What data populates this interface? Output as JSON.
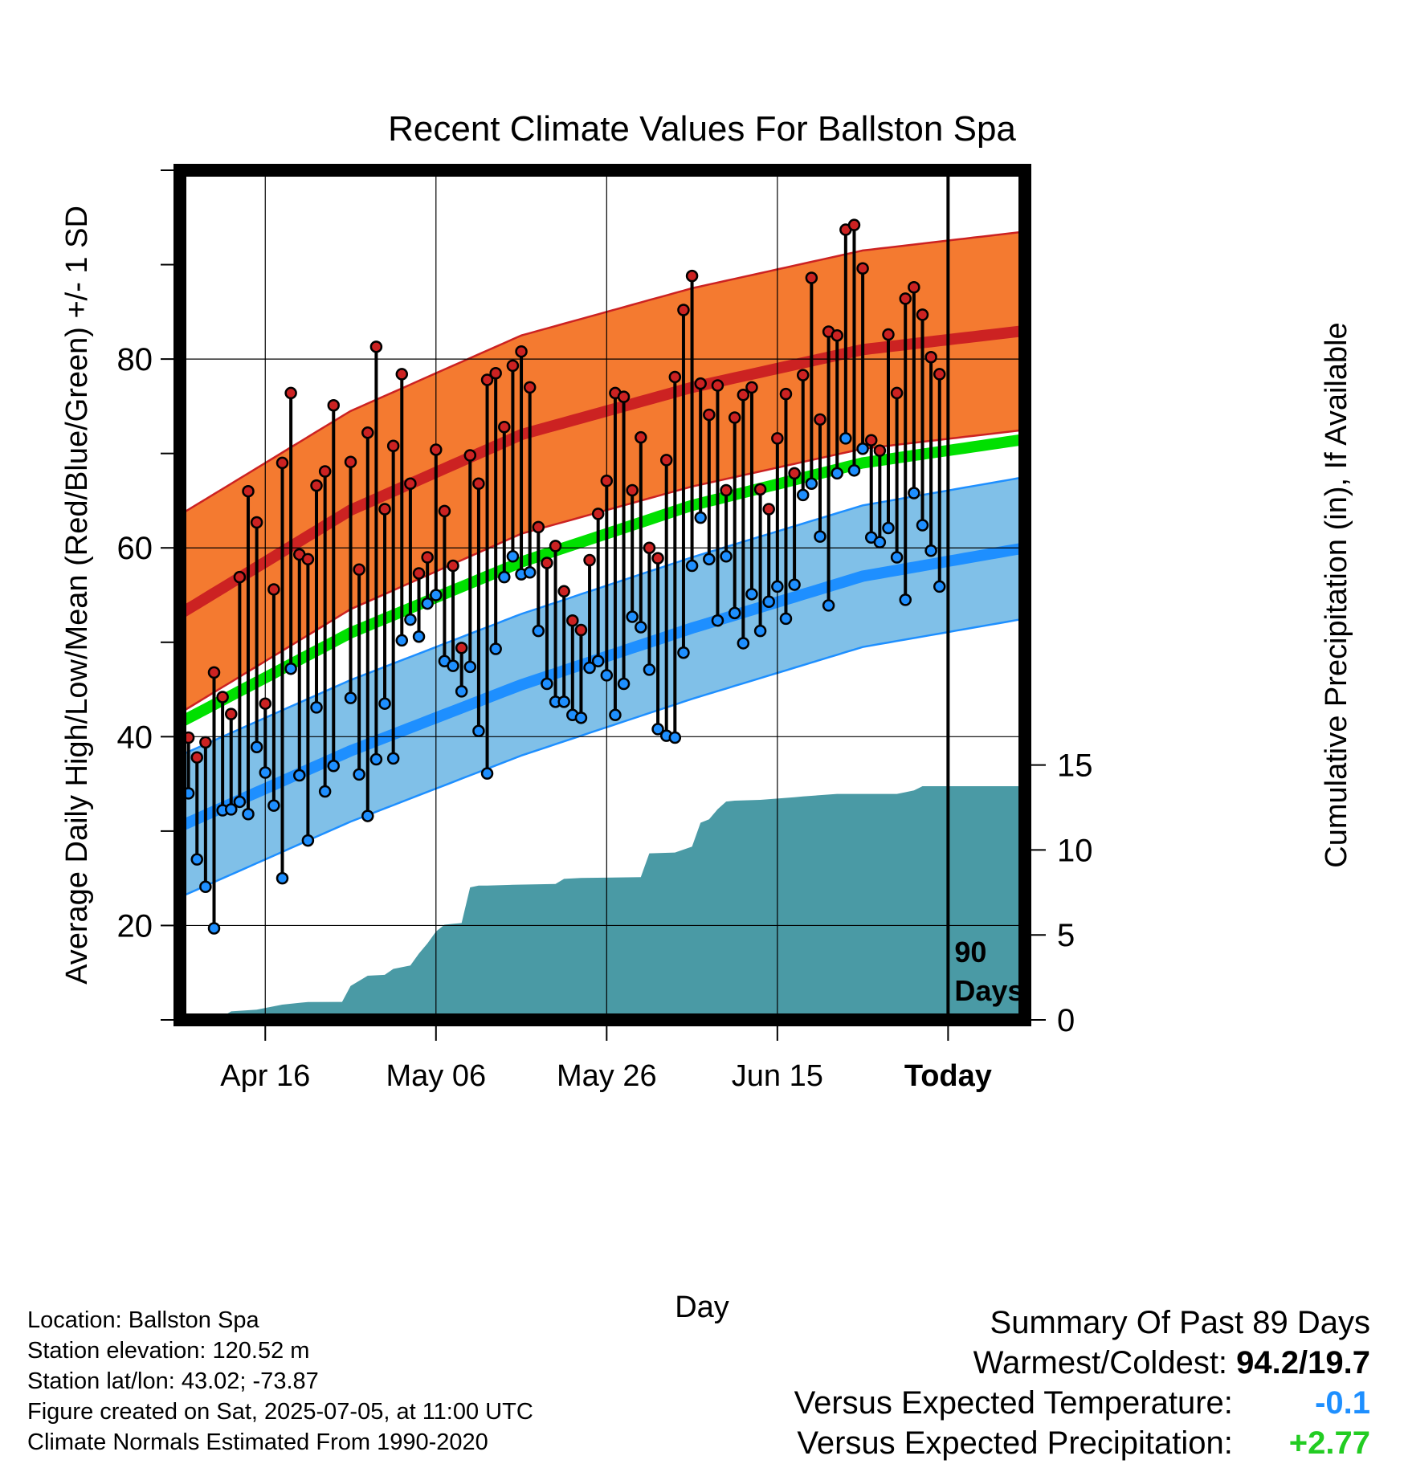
{
  "chart_data": {
    "type": "line",
    "title": "Recent Climate Values For Ballston Spa",
    "xlabel": "Day",
    "ylabel": "Average Daily High/Low/Mean (Red/Blue/Green) +/- 1 SD",
    "y2label": "Cumulative Precipitation (in), If Available",
    "x_tick_labels": [
      "Apr 16",
      "May 06",
      "May 26",
      "Jun 15",
      "Today"
    ],
    "x_ticks": [
      "2025-04-16",
      "2025-05-06",
      "2025-05-26",
      "2025-06-15",
      "2025-07-05"
    ],
    "x_range": [
      "2025-04-06",
      "2025-07-14"
    ],
    "ylim": [
      10,
      100
    ],
    "y_ticks": [
      20,
      40,
      60,
      80
    ],
    "y2lim": [
      0,
      15
    ],
    "y2_ticks": [
      0,
      5,
      10,
      15
    ],
    "today": "2025-07-05",
    "today_label": [
      "90",
      "Days"
    ],
    "colors": {
      "high": "#cc2222",
      "high_band": "#f47a30",
      "low": "#1e8fff",
      "low_band": "#80c0e8",
      "mean": "#00e000",
      "precip": "#4a9aa5",
      "high_dot": "#cc2222",
      "low_dot": "#1e8fff"
    },
    "normal_high": {
      "x": [
        "2025-04-06",
        "2025-04-26",
        "2025-05-16",
        "2025-06-05",
        "2025-06-25",
        "2025-07-14"
      ],
      "y": [
        53,
        64,
        72,
        77,
        81,
        83
      ]
    },
    "normal_high_sd": 10.5,
    "normal_low": {
      "x": [
        "2025-04-06",
        "2025-04-26",
        "2025-05-16",
        "2025-06-05",
        "2025-06-25",
        "2025-07-14"
      ],
      "y": [
        30.5,
        38.5,
        45.5,
        51.5,
        57,
        60
      ]
    },
    "normal_low_sd": 7.5,
    "normal_mean": {
      "x": [
        "2025-04-06",
        "2025-04-26",
        "2025-05-16",
        "2025-06-05",
        "2025-06-25",
        "2025-07-14"
      ],
      "y": [
        41.5,
        51,
        58.5,
        64.5,
        69,
        71.5
      ]
    },
    "daily": {
      "start": "2025-04-06",
      "high": [
        51.5,
        39.9,
        37.8,
        39.4,
        46.8,
        44.2,
        42.4,
        56.9,
        66.0,
        62.7,
        43.5,
        55.6,
        69.0,
        76.4,
        59.3,
        58.8,
        66.6,
        68.1,
        75.1,
        null,
        69.1,
        57.7,
        72.2,
        81.3,
        64.1,
        70.8,
        78.4,
        66.8,
        57.3,
        59.0,
        70.4,
        63.9,
        58.1,
        49.4,
        69.8,
        66.8,
        77.8,
        78.5,
        72.8,
        79.3,
        80.8,
        77.0,
        62.2,
        58.4,
        60.2,
        55.4,
        52.3,
        51.3,
        58.7,
        63.6,
        67.1,
        76.4,
        76.0,
        66.1,
        71.7,
        60.0,
        58.9,
        69.3,
        78.1,
        85.2,
        88.8,
        77.4,
        74.1,
        77.2,
        66.1,
        73.8,
        76.2,
        77.0,
        66.2,
        64.1,
        71.6,
        76.3,
        67.9,
        78.3,
        88.6,
        73.6,
        82.9,
        82.5,
        93.7,
        94.2,
        89.6,
        71.4,
        70.3,
        82.6,
        76.4,
        86.4,
        87.6,
        84.7,
        80.2,
        78.4
      ],
      "low": [
        39.9,
        34.0,
        27.0,
        24.1,
        19.7,
        32.2,
        32.3,
        33.1,
        31.8,
        38.9,
        36.2,
        32.7,
        25.0,
        47.2,
        35.9,
        29.0,
        43.1,
        34.2,
        36.9,
        null,
        44.1,
        36.0,
        31.6,
        37.6,
        43.5,
        37.7,
        50.2,
        52.4,
        50.6,
        54.1,
        55.0,
        48.0,
        47.5,
        44.8,
        47.4,
        40.6,
        36.1,
        49.3,
        56.9,
        59.1,
        57.2,
        57.4,
        51.2,
        45.6,
        43.7,
        43.7,
        42.3,
        42.0,
        47.3,
        48.0,
        46.5,
        42.3,
        45.6,
        52.7,
        51.6,
        47.1,
        40.8,
        40.1,
        39.9,
        48.9,
        58.1,
        63.2,
        58.8,
        52.3,
        59.1,
        53.1,
        49.9,
        55.1,
        51.2,
        54.3,
        55.9,
        52.5,
        56.1,
        65.6,
        66.8,
        61.2,
        53.9,
        67.9,
        71.6,
        68.2,
        70.5,
        61.1,
        60.6,
        62.1,
        59.0,
        54.5,
        65.8,
        62.4,
        59.7,
        55.9
      ]
    },
    "precip": {
      "x": [
        "2025-04-06",
        "2025-04-10",
        "2025-04-11",
        "2025-04-12",
        "2025-04-15",
        "2025-04-18",
        "2025-04-20",
        "2025-04-21",
        "2025-04-25",
        "2025-04-26",
        "2025-04-28",
        "2025-04-30",
        "2025-05-01",
        "2025-05-03",
        "2025-05-04",
        "2025-05-05",
        "2025-05-06",
        "2025-05-07",
        "2025-05-08",
        "2025-05-09",
        "2025-05-10",
        "2025-05-11",
        "2025-05-12",
        "2025-05-15",
        "2025-05-20",
        "2025-05-21",
        "2025-05-23",
        "2025-05-30",
        "2025-05-31",
        "2025-06-03",
        "2025-06-05",
        "2025-06-06",
        "2025-06-07",
        "2025-06-08",
        "2025-06-09",
        "2025-06-10",
        "2025-06-13",
        "2025-06-17",
        "2025-06-18",
        "2025-06-22",
        "2025-06-29",
        "2025-06-30",
        "2025-07-01",
        "2025-07-02",
        "2025-07-14"
      ],
      "y": [
        0,
        0,
        0.2,
        0.5,
        0.6,
        0.9,
        1.0,
        1.05,
        1.06,
        2.0,
        2.6,
        2.65,
        3.0,
        3.2,
        3.9,
        4.5,
        5.2,
        5.6,
        5.65,
        5.7,
        7.8,
        7.9,
        7.9,
        7.95,
        8.0,
        8.3,
        8.35,
        8.4,
        9.8,
        9.85,
        10.2,
        11.6,
        11.8,
        12.4,
        12.85,
        12.9,
        12.95,
        13.1,
        13.15,
        13.3,
        13.3,
        13.4,
        13.5,
        13.75,
        13.75
      ]
    }
  },
  "info": {
    "location": "Location: Ballston Spa",
    "elevation": "Station elevation: 120.52 m",
    "latlon": "Station lat/lon: 43.02; -73.87",
    "created": "Figure created on Sat, 2025-07-05, at 11:00 UTC",
    "normals": "Climate Normals Estimated From 1990-2020"
  },
  "summary": {
    "title": "Summary Of Past 89 Days",
    "warm_label": "Warmest/Coldest:",
    "warm_value": "94.2/19.7",
    "temp_label": "Versus Expected Temperature:",
    "temp_value": "-0.1",
    "temp_color": "#1e8fff",
    "precip_label": "Versus Expected Precipitation:",
    "precip_value": "+2.77",
    "precip_color": "#22cc22"
  }
}
